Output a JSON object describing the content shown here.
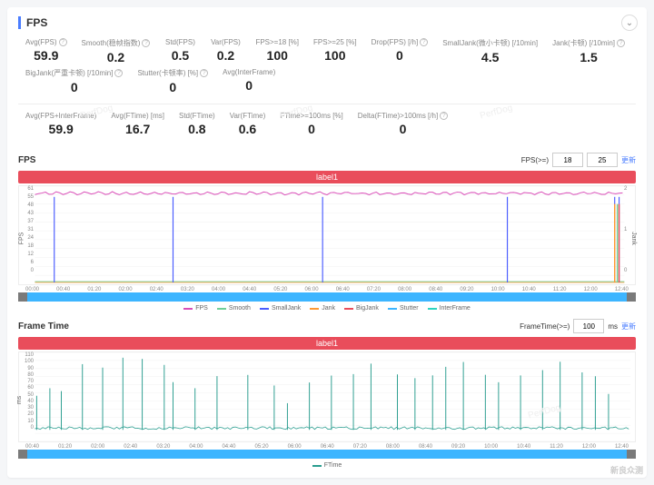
{
  "header": {
    "title": "FPS"
  },
  "row1": [
    {
      "label": "Avg(FPS)",
      "q": 1,
      "val": "59.9"
    },
    {
      "label": "Smooth(稳帧指数)",
      "q": 1,
      "val": "0.2"
    },
    {
      "label": "Std(FPS)",
      "q": 0,
      "val": "0.5"
    },
    {
      "label": "Var(FPS)",
      "q": 0,
      "val": "0.2"
    },
    {
      "label": "FPS>=18 [%]",
      "q": 0,
      "val": "100"
    },
    {
      "label": "FPS>=25 [%]",
      "q": 0,
      "val": "100"
    },
    {
      "label": "Drop(FPS) [/h]",
      "q": 1,
      "val": "0"
    },
    {
      "label": "SmallJank(微小卡顿) [/10min]",
      "q": 0,
      "val": "4.5"
    },
    {
      "label": "Jank(卡顿) [/10min]",
      "q": 1,
      "val": "1.5"
    },
    {
      "label": "BigJank(严重卡顿) [/10min]",
      "q": 1,
      "val": "0"
    },
    {
      "label": "Stutter(卡顿率) [%]",
      "q": 1,
      "val": "0"
    },
    {
      "label": "Avg(InterFrame)",
      "q": 0,
      "val": "0"
    }
  ],
  "row2": [
    {
      "label": "Avg(FPS+InterFrame)",
      "q": 0,
      "val": "59.9"
    },
    {
      "label": "Avg(FTime) [ms]",
      "q": 0,
      "val": "16.7"
    },
    {
      "label": "Std(FTime)",
      "q": 0,
      "val": "0.8"
    },
    {
      "label": "Var(FTime)",
      "q": 0,
      "val": "0.6"
    },
    {
      "label": "FTime>=100ms [%]",
      "q": 0,
      "val": "0"
    },
    {
      "label": "Delta(FTime)>100ms [/h]",
      "q": 1,
      "val": "0"
    }
  ],
  "fpsChart": {
    "title": "FPS",
    "label": "label1",
    "ctrl": {
      "prefix": "FPS(>=)",
      "v1": "18",
      "v2": "25",
      "link": "更新"
    },
    "yticks": [
      "61",
      "55",
      "48",
      "43",
      "37",
      "31",
      "24",
      "18",
      "12",
      "6",
      "0"
    ],
    "yticksR": [
      "2",
      "1",
      "0"
    ],
    "ylabel": "FPS",
    "ylabelR": "Jank",
    "xticks": [
      "00:00",
      "00:40",
      "01:20",
      "02:00",
      "02:40",
      "03:20",
      "04:00",
      "04:40",
      "05:20",
      "06:00",
      "06:40",
      "07:20",
      "08:00",
      "08:40",
      "09:20",
      "10:00",
      "10:40",
      "11:20",
      "12:00",
      "12:40"
    ],
    "spikes": [
      40,
      175,
      345,
      555,
      677,
      682
    ],
    "jankSpikes": [
      {
        "x": 677,
        "c": "#ff9933"
      },
      {
        "x": 682,
        "c": "#e94d5b"
      },
      {
        "x": 680,
        "c": "#6fcf97"
      }
    ],
    "colors": {
      "fps": "#d94db8",
      "smooth": "#6fcf97",
      "smalljank": "#4a5cff",
      "jank": "#ff9933",
      "bigjank": "#e94d5b",
      "stutter": "#3db5ff",
      "interframe": "#2dd4bf"
    },
    "legend": [
      [
        "FPS",
        "#d94db8"
      ],
      [
        "Smooth",
        "#6fcf97"
      ],
      [
        "SmallJank",
        "#4a5cff"
      ],
      [
        "Jank",
        "#ff9933"
      ],
      [
        "BigJank",
        "#e94d5b"
      ],
      [
        "Stutter",
        "#3db5ff"
      ],
      [
        "InterFrame",
        "#2dd4bf"
      ]
    ]
  },
  "ftChart": {
    "title": "Frame Time",
    "label": "label1",
    "ctrl": {
      "prefix": "FrameTime(>=)",
      "v1": "100",
      "unit": "ms",
      "link": "更新"
    },
    "yticks": [
      "110",
      "100",
      "90",
      "80",
      "70",
      "60",
      "50",
      "40",
      "30",
      "20",
      "10",
      "0"
    ],
    "ylabel": "ms",
    "xticks": [
      "00:40",
      "01:20",
      "02:00",
      "02:40",
      "03:20",
      "04:00",
      "04:40",
      "05:20",
      "06:00",
      "06:40",
      "07:20",
      "08:00",
      "08:40",
      "09:20",
      "10:00",
      "10:40",
      "11:20",
      "12:00",
      "12:40"
    ],
    "spikes": [
      20,
      35,
      48,
      72,
      95,
      118,
      140,
      165,
      175,
      200,
      225,
      260,
      290,
      305,
      330,
      355,
      380,
      400,
      430,
      450,
      470,
      485,
      505,
      530,
      545,
      570,
      595,
      615,
      640,
      655,
      670
    ],
    "color": "#2a9d8f",
    "legend": [
      [
        "FTime",
        "#2a9d8f"
      ]
    ]
  },
  "watermark": "PerfDog",
  "corner": "新良众测"
}
